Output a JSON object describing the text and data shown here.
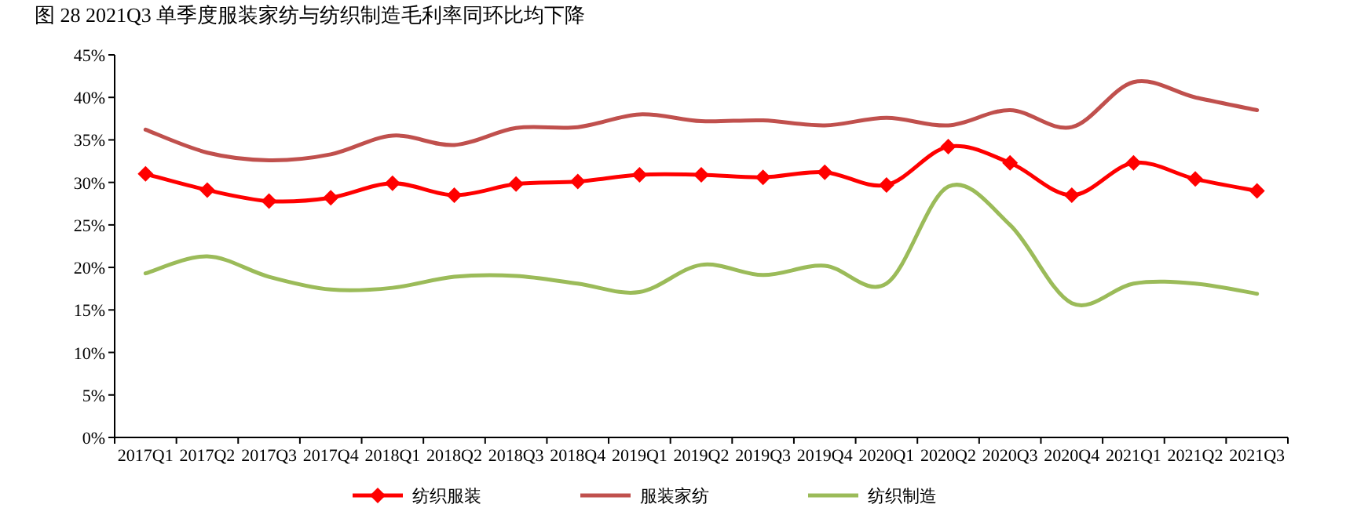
{
  "chart_data": {
    "type": "line",
    "title": "图 28 2021Q3 单季度服装家纺与纺织制造毛利率同环比均下降",
    "categories": [
      "2017Q1",
      "2017Q2",
      "2017Q3",
      "2017Q4",
      "2018Q1",
      "2018Q2",
      "2018Q3",
      "2018Q4",
      "2019Q1",
      "2019Q2",
      "2019Q3",
      "2019Q4",
      "2020Q1",
      "2020Q2",
      "2020Q3",
      "2020Q4",
      "2021Q1",
      "2021Q2",
      "2021Q3"
    ],
    "series": [
      {
        "name": "纺织服装",
        "color": "#ff0000",
        "marker": "diamond",
        "values": [
          31.0,
          29.1,
          27.8,
          28.2,
          29.9,
          28.5,
          29.8,
          30.1,
          30.9,
          30.9,
          30.6,
          31.2,
          29.7,
          34.2,
          32.3,
          28.5,
          32.3,
          30.4,
          29.0
        ]
      },
      {
        "name": "服装家纺",
        "color": "#c0504d",
        "values": [
          36.2,
          33.5,
          32.6,
          33.3,
          35.5,
          34.4,
          36.4,
          36.5,
          38.0,
          37.2,
          37.3,
          36.7,
          37.6,
          36.7,
          38.5,
          36.5,
          41.8,
          40.0,
          38.5
        ]
      },
      {
        "name": "纺织制造",
        "color": "#9bbb59",
        "values": [
          19.3,
          21.3,
          18.9,
          17.4,
          17.6,
          18.9,
          19.0,
          18.1,
          17.1,
          20.3,
          19.1,
          20.2,
          18.1,
          29.5,
          25.0,
          15.8,
          18.1,
          18.1,
          16.9
        ]
      }
    ],
    "ylim": [
      0,
      45
    ],
    "yticks": [
      {
        "value": 0,
        "label": "0%"
      },
      {
        "value": 5,
        "label": "5%"
      },
      {
        "value": 10,
        "label": "10%"
      },
      {
        "value": 15,
        "label": "15%"
      },
      {
        "value": 20,
        "label": "20%"
      },
      {
        "value": 25,
        "label": "25%"
      },
      {
        "value": 30,
        "label": "30%"
      },
      {
        "value": 35,
        "label": "35%"
      },
      {
        "value": 40,
        "label": "40%"
      },
      {
        "value": 45,
        "label": "45%"
      }
    ],
    "grid": false,
    "legend": "bottom",
    "line_style": "solid"
  }
}
